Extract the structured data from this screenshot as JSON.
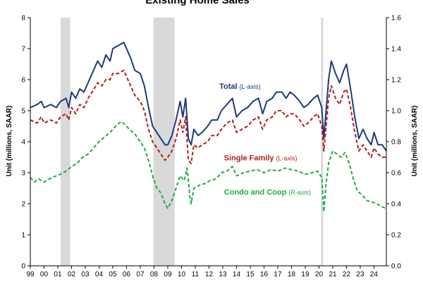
{
  "chart_data": {
    "type": "line",
    "title": "Existing Home Sales",
    "ylabel_left": "Unit (millions, SAAR)",
    "ylabel_right": "Unit (millions, SAAR)",
    "xlim": [
      1999,
      2024.9
    ],
    "ylim_left": [
      0,
      8
    ],
    "ylim_right": [
      0,
      1.6
    ],
    "yticks_left": [
      "0",
      "1",
      "2",
      "3",
      "4",
      "5",
      "6",
      "7",
      "8"
    ],
    "yticks_right": [
      "0.0",
      "0.2",
      "0.4",
      "0.6",
      "0.8",
      "1.0",
      "1.2",
      "1.4",
      "1.6"
    ],
    "xticks": [
      {
        "label": "99",
        "x": 1999
      },
      {
        "label": "00",
        "x": 2000
      },
      {
        "label": "01",
        "x": 2001
      },
      {
        "label": "02",
        "x": 2002
      },
      {
        "label": "03",
        "x": 2003
      },
      {
        "label": "04",
        "x": 2004
      },
      {
        "label": "05",
        "x": 2005
      },
      {
        "label": "06",
        "x": 2006
      },
      {
        "label": "07",
        "x": 2007
      },
      {
        "label": "08",
        "x": 2008
      },
      {
        "label": "09",
        "x": 2009
      },
      {
        "label": "10",
        "x": 2010
      },
      {
        "label": "11",
        "x": 2011
      },
      {
        "label": "12",
        "x": 2012
      },
      {
        "label": "13",
        "x": 2013
      },
      {
        "label": "14",
        "x": 2014
      },
      {
        "label": "15",
        "x": 2015
      },
      {
        "label": "16",
        "x": 2016
      },
      {
        "label": "17",
        "x": 2017
      },
      {
        "label": "18",
        "x": 2018
      },
      {
        "label": "19",
        "x": 2019
      },
      {
        "label": "20",
        "x": 2020
      },
      {
        "label": "21",
        "x": 2021
      },
      {
        "label": "22",
        "x": 2022
      },
      {
        "label": "23",
        "x": 2023
      },
      {
        "label": "24",
        "x": 2024
      }
    ],
    "recessions": [
      [
        2001.2,
        2001.9
      ],
      [
        2007.95,
        2009.5
      ],
      [
        2020.15,
        2020.3
      ]
    ],
    "grid": false,
    "series": [
      {
        "name": "Total",
        "axis_note": "(L-axis)",
        "axis": "left",
        "color": "#1F3A78",
        "dash": "solid",
        "points": [
          [
            1999.0,
            5.1
          ],
          [
            1999.5,
            5.2
          ],
          [
            1999.8,
            5.3
          ],
          [
            2000.0,
            5.1
          ],
          [
            2000.5,
            5.2
          ],
          [
            2000.9,
            5.1
          ],
          [
            2001.2,
            5.3
          ],
          [
            2001.6,
            5.4
          ],
          [
            2001.8,
            5.1
          ],
          [
            2002.0,
            5.6
          ],
          [
            2002.3,
            5.4
          ],
          [
            2002.6,
            5.7
          ],
          [
            2002.9,
            5.6
          ],
          [
            2003.2,
            5.9
          ],
          [
            2003.5,
            6.2
          ],
          [
            2003.9,
            6.6
          ],
          [
            2004.2,
            6.4
          ],
          [
            2004.5,
            6.8
          ],
          [
            2004.8,
            6.6
          ],
          [
            2005.0,
            7.0
          ],
          [
            2005.4,
            7.1
          ],
          [
            2005.8,
            7.2
          ],
          [
            2006.0,
            7.0
          ],
          [
            2006.3,
            6.7
          ],
          [
            2006.6,
            6.3
          ],
          [
            2007.0,
            6.2
          ],
          [
            2007.3,
            5.8
          ],
          [
            2007.6,
            5.1
          ],
          [
            2007.9,
            4.5
          ],
          [
            2008.2,
            4.3
          ],
          [
            2008.5,
            4.1
          ],
          [
            2008.8,
            3.9
          ],
          [
            2009.0,
            3.9
          ],
          [
            2009.3,
            4.2
          ],
          [
            2009.6,
            4.7
          ],
          [
            2009.9,
            5.3
          ],
          [
            2010.1,
            4.8
          ],
          [
            2010.3,
            5.4
          ],
          [
            2010.5,
            4.1
          ],
          [
            2010.7,
            3.9
          ],
          [
            2010.9,
            4.4
          ],
          [
            2011.2,
            4.2
          ],
          [
            2011.5,
            4.3
          ],
          [
            2011.9,
            4.5
          ],
          [
            2012.2,
            4.7
          ],
          [
            2012.6,
            4.7
          ],
          [
            2012.9,
            5.0
          ],
          [
            2013.3,
            5.2
          ],
          [
            2013.7,
            5.4
          ],
          [
            2014.0,
            4.8
          ],
          [
            2014.4,
            5.0
          ],
          [
            2014.8,
            5.1
          ],
          [
            2015.2,
            5.3
          ],
          [
            2015.6,
            5.4
          ],
          [
            2015.9,
            4.9
          ],
          [
            2016.2,
            5.3
          ],
          [
            2016.6,
            5.4
          ],
          [
            2016.9,
            5.6
          ],
          [
            2017.3,
            5.6
          ],
          [
            2017.6,
            5.4
          ],
          [
            2017.9,
            5.6
          ],
          [
            2018.2,
            5.5
          ],
          [
            2018.6,
            5.3
          ],
          [
            2018.9,
            5.1
          ],
          [
            2019.2,
            5.2
          ],
          [
            2019.6,
            5.4
          ],
          [
            2019.9,
            5.5
          ],
          [
            2020.2,
            5.1
          ],
          [
            2020.35,
            4.1
          ],
          [
            2020.5,
            4.9
          ],
          [
            2020.7,
            6.0
          ],
          [
            2020.9,
            6.6
          ],
          [
            2021.2,
            6.2
          ],
          [
            2021.5,
            5.9
          ],
          [
            2021.8,
            6.3
          ],
          [
            2022.0,
            6.5
          ],
          [
            2022.3,
            5.7
          ],
          [
            2022.6,
            4.8
          ],
          [
            2022.9,
            4.1
          ],
          [
            2023.2,
            4.4
          ],
          [
            2023.5,
            4.1
          ],
          [
            2023.8,
            3.9
          ],
          [
            2024.0,
            4.3
          ],
          [
            2024.3,
            3.9
          ],
          [
            2024.6,
            3.9
          ],
          [
            2024.9,
            3.7
          ]
        ]
      },
      {
        "name": "Single Family",
        "axis_note": "(L-axis)",
        "axis": "left",
        "color": "#B01E23",
        "dash": "dashed",
        "points": [
          [
            1999.0,
            4.7
          ],
          [
            1999.5,
            4.6
          ],
          [
            1999.8,
            4.8
          ],
          [
            2000.0,
            4.6
          ],
          [
            2000.5,
            4.7
          ],
          [
            2000.9,
            4.6
          ],
          [
            2001.2,
            4.8
          ],
          [
            2001.6,
            4.9
          ],
          [
            2001.8,
            4.7
          ],
          [
            2002.0,
            5.1
          ],
          [
            2002.3,
            4.9
          ],
          [
            2002.6,
            5.2
          ],
          [
            2002.9,
            5.1
          ],
          [
            2003.2,
            5.4
          ],
          [
            2003.5,
            5.6
          ],
          [
            2003.9,
            5.9
          ],
          [
            2004.2,
            5.8
          ],
          [
            2004.5,
            6.0
          ],
          [
            2004.8,
            6.0
          ],
          [
            2005.0,
            6.2
          ],
          [
            2005.4,
            6.2
          ],
          [
            2005.8,
            6.3
          ],
          [
            2006.0,
            6.1
          ],
          [
            2006.3,
            5.8
          ],
          [
            2006.6,
            5.5
          ],
          [
            2007.0,
            5.3
          ],
          [
            2007.3,
            5.0
          ],
          [
            2007.6,
            4.4
          ],
          [
            2007.9,
            4.0
          ],
          [
            2008.2,
            3.8
          ],
          [
            2008.5,
            3.6
          ],
          [
            2008.8,
            3.4
          ],
          [
            2009.0,
            3.5
          ],
          [
            2009.3,
            3.7
          ],
          [
            2009.6,
            4.1
          ],
          [
            2009.9,
            4.7
          ],
          [
            2010.1,
            4.3
          ],
          [
            2010.3,
            4.8
          ],
          [
            2010.5,
            3.4
          ],
          [
            2010.7,
            3.3
          ],
          [
            2010.9,
            3.9
          ],
          [
            2011.2,
            3.8
          ],
          [
            2011.5,
            3.9
          ],
          [
            2011.9,
            4.0
          ],
          [
            2012.2,
            4.2
          ],
          [
            2012.6,
            4.2
          ],
          [
            2012.9,
            4.4
          ],
          [
            2013.3,
            4.6
          ],
          [
            2013.7,
            4.7
          ],
          [
            2014.0,
            4.3
          ],
          [
            2014.4,
            4.4
          ],
          [
            2014.8,
            4.5
          ],
          [
            2015.2,
            4.7
          ],
          [
            2015.6,
            4.8
          ],
          [
            2015.9,
            4.4
          ],
          [
            2016.2,
            4.7
          ],
          [
            2016.6,
            4.8
          ],
          [
            2016.9,
            5.0
          ],
          [
            2017.3,
            5.0
          ],
          [
            2017.6,
            4.8
          ],
          [
            2017.9,
            4.9
          ],
          [
            2018.2,
            4.9
          ],
          [
            2018.6,
            4.7
          ],
          [
            2018.9,
            4.5
          ],
          [
            2019.2,
            4.6
          ],
          [
            2019.6,
            4.8
          ],
          [
            2019.9,
            4.9
          ],
          [
            2020.2,
            4.5
          ],
          [
            2020.35,
            3.7
          ],
          [
            2020.5,
            4.4
          ],
          [
            2020.7,
            5.4
          ],
          [
            2020.9,
            5.8
          ],
          [
            2021.2,
            5.4
          ],
          [
            2021.5,
            5.2
          ],
          [
            2021.8,
            5.6
          ],
          [
            2022.0,
            5.7
          ],
          [
            2022.3,
            5.1
          ],
          [
            2022.6,
            4.3
          ],
          [
            2022.9,
            3.7
          ],
          [
            2023.2,
            3.9
          ],
          [
            2023.5,
            3.7
          ],
          [
            2023.8,
            3.5
          ],
          [
            2024.0,
            3.8
          ],
          [
            2024.3,
            3.6
          ],
          [
            2024.6,
            3.5
          ],
          [
            2024.9,
            3.5
          ]
        ]
      },
      {
        "name": "Condo and Coop",
        "axis_note": "(R-axis)",
        "axis": "right",
        "color": "#22AA4B",
        "dash": "dashed",
        "points": [
          [
            1999.0,
            0.57
          ],
          [
            1999.3,
            0.54
          ],
          [
            1999.6,
            0.56
          ],
          [
            2000.0,
            0.54
          ],
          [
            2000.4,
            0.56
          ],
          [
            2000.9,
            0.58
          ],
          [
            2001.2,
            0.59
          ],
          [
            2001.6,
            0.61
          ],
          [
            2002.0,
            0.64
          ],
          [
            2002.4,
            0.66
          ],
          [
            2002.8,
            0.7
          ],
          [
            2003.2,
            0.72
          ],
          [
            2003.6,
            0.76
          ],
          [
            2004.0,
            0.8
          ],
          [
            2004.4,
            0.83
          ],
          [
            2004.8,
            0.86
          ],
          [
            2005.2,
            0.9
          ],
          [
            2005.6,
            0.93
          ],
          [
            2005.9,
            0.91
          ],
          [
            2006.2,
            0.88
          ],
          [
            2006.6,
            0.85
          ],
          [
            2007.0,
            0.8
          ],
          [
            2007.3,
            0.76
          ],
          [
            2007.6,
            0.68
          ],
          [
            2007.9,
            0.58
          ],
          [
            2008.2,
            0.5
          ],
          [
            2008.5,
            0.47
          ],
          [
            2008.8,
            0.4
          ],
          [
            2009.0,
            0.37
          ],
          [
            2009.3,
            0.42
          ],
          [
            2009.6,
            0.5
          ],
          [
            2009.9,
            0.58
          ],
          [
            2010.2,
            0.55
          ],
          [
            2010.4,
            0.63
          ],
          [
            2010.6,
            0.45
          ],
          [
            2010.7,
            0.4
          ],
          [
            2010.9,
            0.5
          ],
          [
            2011.3,
            0.52
          ],
          [
            2011.7,
            0.53
          ],
          [
            2012.1,
            0.55
          ],
          [
            2012.5,
            0.56
          ],
          [
            2012.9,
            0.6
          ],
          [
            2013.3,
            0.61
          ],
          [
            2013.7,
            0.64
          ],
          [
            2014.0,
            0.58
          ],
          [
            2014.5,
            0.6
          ],
          [
            2015.0,
            0.61
          ],
          [
            2015.5,
            0.62
          ],
          [
            2016.0,
            0.6
          ],
          [
            2016.5,
            0.62
          ],
          [
            2017.0,
            0.61
          ],
          [
            2017.5,
            0.63
          ],
          [
            2018.0,
            0.62
          ],
          [
            2018.5,
            0.61
          ],
          [
            2019.0,
            0.59
          ],
          [
            2019.5,
            0.6
          ],
          [
            2019.9,
            0.61
          ],
          [
            2020.2,
            0.57
          ],
          [
            2020.35,
            0.35
          ],
          [
            2020.5,
            0.52
          ],
          [
            2020.7,
            0.66
          ],
          [
            2021.0,
            0.74
          ],
          [
            2021.3,
            0.72
          ],
          [
            2021.6,
            0.7
          ],
          [
            2021.9,
            0.73
          ],
          [
            2022.2,
            0.66
          ],
          [
            2022.5,
            0.56
          ],
          [
            2022.8,
            0.48
          ],
          [
            2023.1,
            0.46
          ],
          [
            2023.5,
            0.42
          ],
          [
            2023.9,
            0.41
          ],
          [
            2024.2,
            0.4
          ],
          [
            2024.6,
            0.38
          ],
          [
            2024.9,
            0.37
          ]
        ]
      }
    ],
    "annotations": [
      {
        "series": 0,
        "name_text": "Total",
        "note_text": "(L-axis)",
        "at_x": 2014.25,
        "at_y_left": 5.7
      },
      {
        "series": 1,
        "name_text": "Single Family",
        "note_text": "(L-axis)",
        "at_x": 2015.75,
        "at_y_left": 3.4
      },
      {
        "series": 2,
        "name_text": "Condo and Coop",
        "note_text": "(R-axis)",
        "at_x": 2016.25,
        "at_y_left": 2.3
      }
    ]
  }
}
